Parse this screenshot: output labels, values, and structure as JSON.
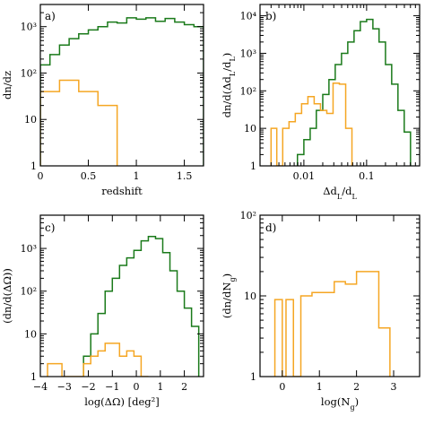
{
  "colors": {
    "green": "#1a7a1a",
    "orange": "#f5a623"
  },
  "chart_data": [
    {
      "type": "histogram",
      "panel_label": "a)",
      "xlabel": "redshift",
      "ylabel": "dn/dz",
      "xlim": [
        0,
        1.7
      ],
      "ylim": [
        1,
        3000
      ],
      "yscale": "log",
      "xticks": [
        0,
        0.5,
        1,
        1.5
      ],
      "xtick_labels": [
        "0",
        "0.5",
        "1",
        "1.5"
      ],
      "yticks": [
        1,
        10,
        100,
        1000
      ],
      "ytick_labels": [
        "1",
        "10",
        "10²",
        "10³"
      ],
      "series": [
        {
          "color_key": "green",
          "edges": [
            0.0,
            0.1,
            0.2,
            0.3,
            0.4,
            0.5,
            0.6,
            0.7,
            0.8,
            0.9,
            1.0,
            1.1,
            1.2,
            1.3,
            1.4,
            1.5,
            1.6,
            1.7
          ],
          "counts": [
            150,
            250,
            400,
            550,
            700,
            850,
            1000,
            1250,
            1200,
            1550,
            1450,
            1550,
            1300,
            1500,
            1250,
            1100,
            1000
          ]
        },
        {
          "color_key": "orange",
          "edges": [
            0.0,
            0.1,
            0.2,
            0.3,
            0.4,
            0.5,
            0.6,
            0.7,
            0.8
          ],
          "counts": [
            40,
            40,
            70,
            70,
            40,
            40,
            20,
            20
          ]
        }
      ]
    },
    {
      "type": "histogram",
      "panel_label": "b)",
      "xlabel": "Δd_L/d_L",
      "ylabel": "dn/d(Δd_L/d_L)",
      "xlim": [
        0.002,
        0.7
      ],
      "ylim": [
        1,
        20000
      ],
      "xscale": "log",
      "yscale": "log",
      "xticks": [
        0.01,
        0.1
      ],
      "xtick_labels": [
        "0.01",
        "0.1"
      ],
      "yticks": [
        1,
        10,
        100,
        1000,
        10000
      ],
      "ytick_labels": [
        "1",
        "10",
        "10²",
        "10³",
        "10⁴"
      ],
      "series": [
        {
          "color_key": "green",
          "edges": [
            0.0079,
            0.01,
            0.0126,
            0.0158,
            0.02,
            0.0251,
            0.0316,
            0.0398,
            0.0501,
            0.0631,
            0.0794,
            0.1,
            0.126,
            0.158,
            0.2,
            0.251,
            0.316,
            0.398,
            0.501
          ],
          "counts": [
            2,
            5,
            10,
            30,
            80,
            200,
            500,
            1000,
            2000,
            4000,
            7000,
            8000,
            4500,
            2000,
            500,
            150,
            30,
            8
          ]
        },
        {
          "color_key": "orange",
          "edges": [
            0.003,
            0.0037,
            0.0046,
            0.0058,
            0.0073,
            0.0092,
            0.0116,
            0.0146,
            0.0184,
            0.0232,
            0.0292,
            0.0368,
            0.0464,
            0.0584
          ],
          "counts": [
            10,
            1,
            10,
            15,
            25,
            45,
            70,
            45,
            30,
            25,
            160,
            150,
            10
          ]
        }
      ]
    },
    {
      "type": "histogram",
      "panel_label": "c)",
      "xlabel": "log(ΔΩ)  [deg²]",
      "ylabel": "(dn/d(ΔΩ))",
      "xlim": [
        -4,
        2.8
      ],
      "ylim": [
        1,
        6000
      ],
      "yscale": "log",
      "xticks": [
        -4,
        -3,
        -2,
        -1,
        0,
        1,
        2
      ],
      "xtick_labels": [
        "−4",
        "−3",
        "−2",
        "−1",
        "0",
        "1",
        "2"
      ],
      "yticks": [
        1,
        10,
        100,
        1000
      ],
      "ytick_labels": [
        "1",
        "10",
        "10²",
        "10³"
      ],
      "series": [
        {
          "color_key": "green",
          "edges": [
            -2.2,
            -1.9,
            -1.6,
            -1.3,
            -1.0,
            -0.7,
            -0.4,
            -0.1,
            0.2,
            0.5,
            0.8,
            1.1,
            1.4,
            1.7,
            2.0,
            2.3,
            2.6
          ],
          "counts": [
            3,
            10,
            30,
            100,
            200,
            400,
            600,
            900,
            1500,
            1900,
            1700,
            800,
            300,
            100,
            40,
            15
          ]
        },
        {
          "color_key": "orange",
          "edges": [
            -3.7,
            -3.4,
            -3.1,
            -2.8,
            -2.5,
            -2.2,
            -1.9,
            -1.6,
            -1.3,
            -1.0,
            -0.7,
            -0.4,
            -0.1,
            0.2,
            0.5
          ],
          "counts": [
            2,
            2,
            1,
            1,
            1,
            2,
            3,
            4,
            6,
            6,
            3,
            4,
            3,
            1
          ]
        }
      ]
    },
    {
      "type": "histogram",
      "panel_label": "d)",
      "xlabel": "log(N_g)",
      "ylabel": "(dn/dN_g)",
      "xlim": [
        -0.6,
        3.7
      ],
      "ylim": [
        1,
        100
      ],
      "yscale": "log",
      "xticks": [
        0,
        1,
        2,
        3
      ],
      "xtick_labels": [
        "0",
        "1",
        "2",
        "3"
      ],
      "yticks": [
        1,
        10,
        100
      ],
      "ytick_labels": [
        "1",
        "10",
        "10²"
      ],
      "series": [
        {
          "color_key": "orange",
          "edges": [
            -0.2,
            0.0,
            0.1,
            0.3,
            0.5,
            0.8,
            1.1,
            1.4,
            1.7,
            2.0,
            2.3,
            2.6,
            2.9
          ],
          "counts": [
            9,
            1,
            9,
            1,
            10,
            11,
            11,
            15,
            14,
            20,
            20,
            4
          ]
        }
      ]
    }
  ]
}
